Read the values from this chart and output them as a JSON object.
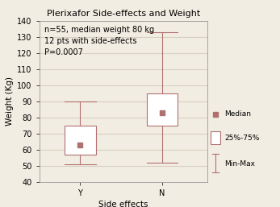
{
  "title": "Plerixafor Side-effects and Weight",
  "xlabel": "Side effects",
  "ylabel": "Weight (Kg)",
  "annotation": "n=55, median weight 80 kg\n12 pts with side-effects\nP=0.0007",
  "ylim": [
    40,
    140
  ],
  "yticks": [
    40,
    50,
    60,
    70,
    80,
    90,
    100,
    110,
    120,
    130,
    140
  ],
  "categories": [
    "Y",
    "N"
  ],
  "boxes": [
    {
      "q1": 57,
      "median": 63,
      "q3": 75,
      "whisker_min": 51,
      "whisker_max": 90
    },
    {
      "q1": 75,
      "median": 83,
      "q3": 95,
      "whisker_min": 52,
      "whisker_max": 133
    }
  ],
  "box_color": "#b07070",
  "box_facecolor": "#ffffff",
  "median_marker": "s",
  "median_marker_color": "#b07070",
  "median_marker_size": 4,
  "background_color": "#f2ede2",
  "grid_color": "#d8d0c0",
  "title_fontsize": 8,
  "label_fontsize": 7.5,
  "tick_fontsize": 7,
  "annotation_fontsize": 7,
  "box_width": 0.38,
  "legend_items": [
    "Median",
    "25%-75%",
    "Min-Max"
  ]
}
